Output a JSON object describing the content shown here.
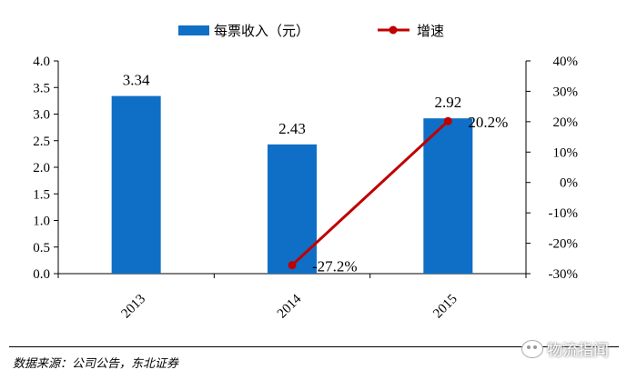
{
  "chart_data": {
    "type": "bar",
    "categories": [
      "2013",
      "2014",
      "2015"
    ],
    "series": [
      {
        "name": "每票收入（元）",
        "kind": "bar",
        "axis": "left",
        "values": [
          3.34,
          2.43,
          2.92
        ],
        "color": "#0f6fc6",
        "data_labels": [
          "3.34",
          "2.43",
          "2.92"
        ]
      },
      {
        "name": "增速",
        "kind": "line",
        "axis": "right",
        "values": [
          null,
          -27.2,
          20.2
        ],
        "color": "#c00000",
        "data_labels": [
          "",
          "-27.2%",
          "20.2%"
        ]
      }
    ],
    "ylim_left": [
      0,
      4.0
    ],
    "ylim_right": [
      -30,
      40
    ],
    "yticks_left": [
      "0.0",
      "0.5",
      "1.0",
      "1.5",
      "2.0",
      "2.5",
      "3.0",
      "3.5",
      "4.0"
    ],
    "yticks_right": [
      "-30%",
      "-20%",
      "-10%",
      "0%",
      "10%",
      "20%",
      "30%",
      "40%"
    ],
    "legend_position": "top-center",
    "grid": false
  },
  "footer": {
    "source": "数据来源：公司公告，东北证券"
  },
  "watermark": {
    "text": "物流指闻"
  },
  "colors": {
    "bar": "#0f6fc6",
    "line": "#c00000"
  }
}
